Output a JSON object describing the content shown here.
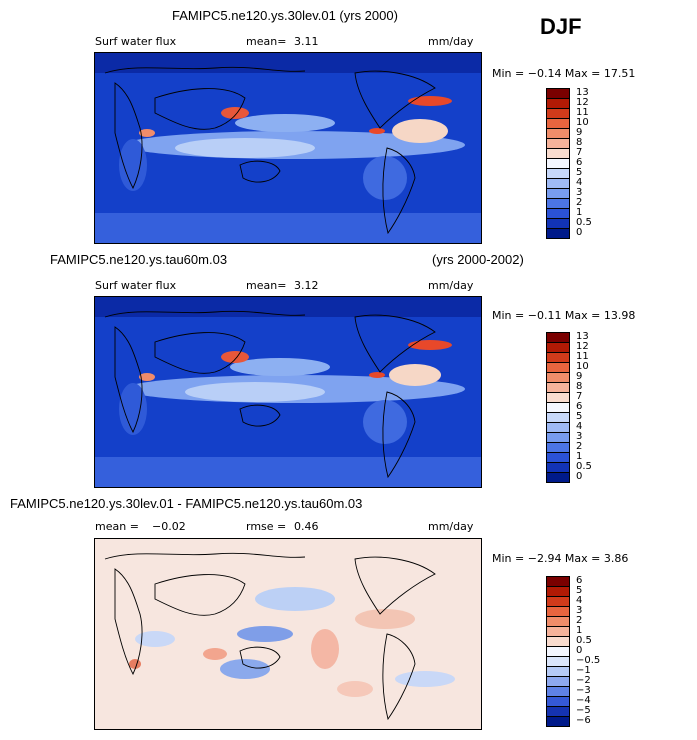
{
  "colors": {
    "deep_blue": "#0b2eb8",
    "mid_blue": "#3a62e0",
    "light_blue": "#a9c2f5",
    "white": "#f4f7ff",
    "red": "#e8482a",
    "dark_red": "#9e1b0a",
    "diff_bg": "#f7e6df"
  },
  "header": {
    "title1": "FAMIPC5.ne120.ys.30lev.01 (yrs 2000)",
    "season": "DJF"
  },
  "panels": [
    {
      "id": "p1",
      "var": "Surf water flux",
      "mean_label": "mean=",
      "mean_value": "3.11",
      "units": "mm/day",
      "minmax": "Min =  −0.14  Max =   17.51",
      "colorbar_labels": [
        "13",
        "12",
        "11",
        "10",
        "9",
        "8",
        "7",
        "6",
        "5",
        "4",
        "3",
        "2",
        "1",
        "0.5",
        "0"
      ]
    },
    {
      "id": "p2",
      "case": "FAMIPC5.ne120.ys.tau60m.03",
      "years": "(yrs 2000-2002)",
      "var": "Surf water flux",
      "mean_label": "mean=",
      "mean_value": "3.12",
      "units": "mm/day",
      "minmax": "Min =  −0.11  Max =   13.98",
      "colorbar_labels": [
        "13",
        "12",
        "11",
        "10",
        "9",
        "8",
        "7",
        "6",
        "5",
        "4",
        "3",
        "2",
        "1",
        "0.5",
        "0"
      ]
    },
    {
      "id": "p3",
      "case": "FAMIPC5.ne120.ys.30lev.01 - FAMIPC5.ne120.ys.tau60m.03",
      "mean_label": "mean =",
      "mean_value": "−0.02",
      "rmse_label": "rmse =",
      "rmse_value": "0.46",
      "units": "mm/day",
      "minmax": "Min =  −2.94  Max =    3.86",
      "colorbar_labels": [
        "6",
        "5",
        "4",
        "3",
        "2",
        "1",
        "0.5",
        "0",
        "−0.5",
        "−1",
        "−2",
        "−3",
        "−4",
        "−5",
        "−6"
      ]
    }
  ]
}
